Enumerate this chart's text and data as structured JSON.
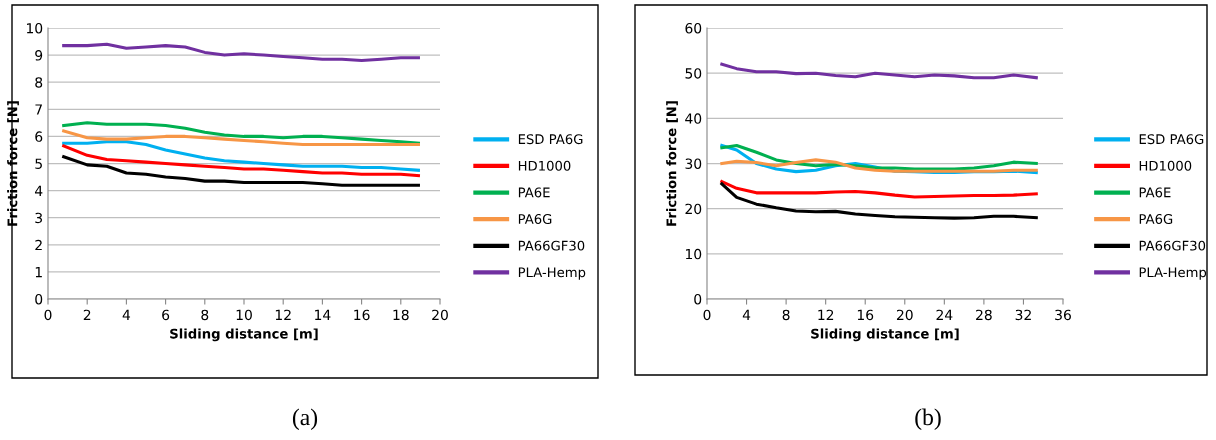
{
  "chart_data": [
    {
      "type": "line",
      "xlabel": "Sliding distance [m]",
      "ylabel": "Friction force [N]",
      "xlim": [
        0,
        20
      ],
      "ylim": [
        0,
        10
      ],
      "xticks": [
        0,
        2,
        4,
        6,
        8,
        10,
        12,
        14,
        16,
        18,
        20
      ],
      "yticks": [
        0,
        1,
        2,
        3,
        4,
        5,
        6,
        7,
        8,
        9,
        10
      ],
      "grid": "y",
      "legend": "right",
      "annotations": [
        "(a)"
      ],
      "x": [
        0.8,
        2,
        3,
        4,
        5,
        6,
        7,
        8,
        9,
        10,
        11,
        12,
        13,
        14,
        15,
        16,
        17,
        18,
        18.9
      ],
      "series": [
        {
          "name": "ESD PA6G",
          "color": "#00b0f0",
          "values": [
            5.75,
            5.75,
            5.8,
            5.8,
            5.7,
            5.5,
            5.35,
            5.2,
            5.1,
            5.05,
            5.0,
            4.95,
            4.9,
            4.9,
            4.9,
            4.85,
            4.85,
            4.8,
            4.75
          ]
        },
        {
          "name": "HD1000",
          "color": "#ff0000",
          "values": [
            5.65,
            5.3,
            5.15,
            5.1,
            5.05,
            5.0,
            4.95,
            4.9,
            4.85,
            4.8,
            4.8,
            4.75,
            4.7,
            4.65,
            4.65,
            4.6,
            4.6,
            4.6,
            4.55
          ]
        },
        {
          "name": "PA6E",
          "color": "#00b050",
          "values": [
            6.4,
            6.5,
            6.45,
            6.45,
            6.45,
            6.4,
            6.3,
            6.15,
            6.05,
            6.0,
            6.0,
            5.95,
            6.0,
            6.0,
            5.95,
            5.9,
            5.85,
            5.8,
            5.75
          ]
        },
        {
          "name": "PA6G",
          "color": "#f79646",
          "values": [
            6.2,
            5.95,
            5.9,
            5.9,
            5.95,
            6.0,
            6.0,
            5.95,
            5.9,
            5.85,
            5.8,
            5.75,
            5.7,
            5.7,
            5.7,
            5.7,
            5.7,
            5.7,
            5.7
          ]
        },
        {
          "name": "PA66GF30",
          "color": "#000000",
          "values": [
            5.25,
            4.95,
            4.9,
            4.65,
            4.6,
            4.5,
            4.45,
            4.35,
            4.35,
            4.3,
            4.3,
            4.3,
            4.3,
            4.25,
            4.2,
            4.2,
            4.2,
            4.2,
            4.2
          ]
        },
        {
          "name": "PLA-Hemp",
          "color": "#7030a0",
          "values": [
            9.35,
            9.35,
            9.4,
            9.25,
            9.3,
            9.35,
            9.3,
            9.1,
            9.0,
            9.05,
            9.0,
            8.95,
            8.9,
            8.85,
            8.85,
            8.8,
            8.85,
            8.9,
            8.9
          ]
        }
      ]
    },
    {
      "type": "line",
      "xlabel": "Sliding distance [m]",
      "ylabel": "Friction force [N]",
      "xlim": [
        0,
        36
      ],
      "ylim": [
        0,
        60
      ],
      "xticks": [
        0,
        4,
        8,
        12,
        16,
        20,
        24,
        28,
        32,
        36
      ],
      "yticks": [
        0,
        10,
        20,
        30,
        40,
        50,
        60
      ],
      "grid": "y",
      "legend": "right",
      "annotations": [
        "(b)"
      ],
      "x": [
        1.5,
        3,
        5,
        7,
        9,
        11,
        13,
        15,
        17,
        19,
        21,
        23,
        25,
        27,
        29,
        31,
        33.3
      ],
      "series": [
        {
          "name": "ESD PA6G",
          "color": "#00b0f0",
          "values": [
            34,
            33,
            30,
            28.8,
            28.2,
            28.5,
            29.5,
            30,
            29.2,
            28.3,
            28.2,
            28,
            28,
            28.2,
            28.2,
            28.3,
            28
          ]
        },
        {
          "name": "HD1000",
          "color": "#ff0000",
          "values": [
            26,
            24.5,
            23.5,
            23.5,
            23.5,
            23.5,
            23.7,
            23.8,
            23.5,
            23,
            22.6,
            22.7,
            22.8,
            22.9,
            22.9,
            23,
            23.3
          ]
        },
        {
          "name": "PA6E",
          "color": "#00b050",
          "values": [
            33.5,
            34,
            32.5,
            30.8,
            30,
            29.5,
            29.8,
            29.5,
            29,
            29,
            28.8,
            28.8,
            28.8,
            29,
            29.5,
            30.3,
            30
          ]
        },
        {
          "name": "PA6G",
          "color": "#f79646",
          "values": [
            30,
            30.5,
            30.2,
            29.5,
            30.2,
            30.8,
            30.3,
            29,
            28.5,
            28.3,
            28.3,
            28.3,
            28.3,
            28.3,
            28.3,
            28.5,
            28.5
          ]
        },
        {
          "name": "PA66GF30",
          "color": "#000000",
          "values": [
            25.5,
            22.5,
            21,
            20.2,
            19.5,
            19.3,
            19.4,
            18.8,
            18.5,
            18.2,
            18.1,
            18,
            17.9,
            18,
            18.3,
            18.3,
            18
          ]
        },
        {
          "name": "PLA-Hemp",
          "color": "#7030a0",
          "values": [
            52,
            51,
            50.3,
            50.3,
            49.9,
            50,
            49.5,
            49.2,
            50,
            49.6,
            49.2,
            49.6,
            49.4,
            49,
            49,
            49.6,
            49
          ]
        }
      ]
    }
  ]
}
